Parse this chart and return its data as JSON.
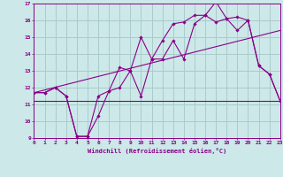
{
  "xlabel": "Windchill (Refroidissement éolien,°C)",
  "bg_color": "#cce8e8",
  "grid_color": "#aacccc",
  "line_color": "#880088",
  "x_min": 0,
  "x_max": 23,
  "y_min": 9,
  "y_max": 17,
  "line1_x": [
    0,
    1,
    2,
    3,
    4,
    5,
    6,
    7,
    8,
    9,
    10,
    11,
    12,
    13,
    14,
    15,
    16,
    17,
    18,
    19,
    20,
    21,
    22,
    23
  ],
  "line1_y": [
    11.7,
    11.7,
    12.0,
    11.5,
    9.1,
    9.1,
    10.3,
    11.8,
    12.0,
    13.0,
    11.5,
    13.7,
    13.7,
    14.8,
    13.7,
    15.8,
    16.3,
    17.1,
    16.1,
    16.2,
    16.0,
    13.3,
    12.8,
    11.2
  ],
  "line2_x": [
    0,
    1,
    2,
    3,
    4,
    5,
    6,
    7,
    8,
    9,
    10,
    11,
    12,
    13,
    14,
    15,
    16,
    17,
    18,
    19,
    20,
    21,
    22,
    23
  ],
  "line2_y": [
    11.7,
    11.7,
    12.0,
    11.5,
    9.1,
    9.1,
    11.5,
    11.8,
    13.2,
    13.0,
    15.0,
    13.7,
    14.8,
    15.8,
    15.9,
    16.3,
    16.3,
    15.9,
    16.1,
    15.4,
    16.0,
    13.3,
    12.8,
    11.2
  ],
  "line3_x": [
    0,
    23
  ],
  "line3_y": [
    11.2,
    11.2
  ],
  "line4_x": [
    0,
    23
  ],
  "line4_y": [
    11.7,
    15.4
  ]
}
